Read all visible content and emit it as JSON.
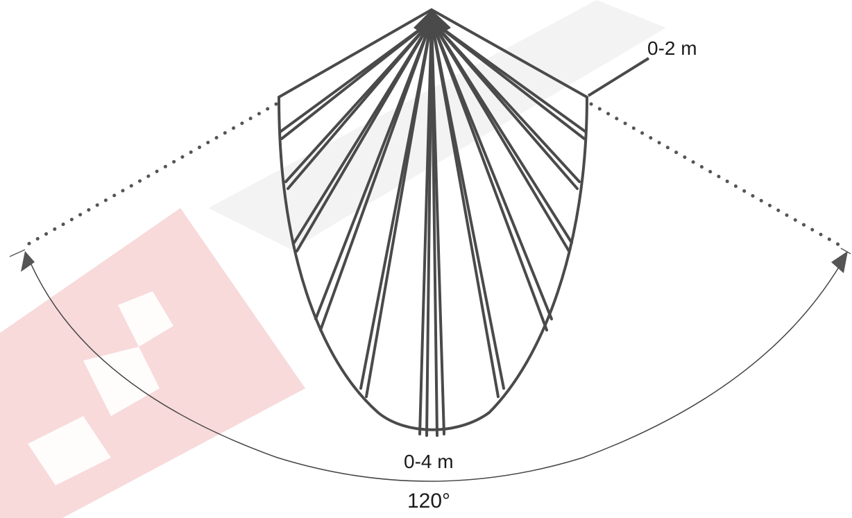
{
  "diagram": {
    "title": "",
    "labels": {
      "near_range": "0-2 m",
      "far_range": "0-4 m",
      "detection_angle": "120°"
    }
  },
  "colors": {
    "lens_stroke": "#4a4a4a",
    "dotted_boundary": "#555555",
    "arc_line": "#555555",
    "watermark_red": "#f7d6d8",
    "watermark_gray": "#f2f2f2"
  },
  "icons": {
    "watermark": "brand-logo-watermark"
  }
}
